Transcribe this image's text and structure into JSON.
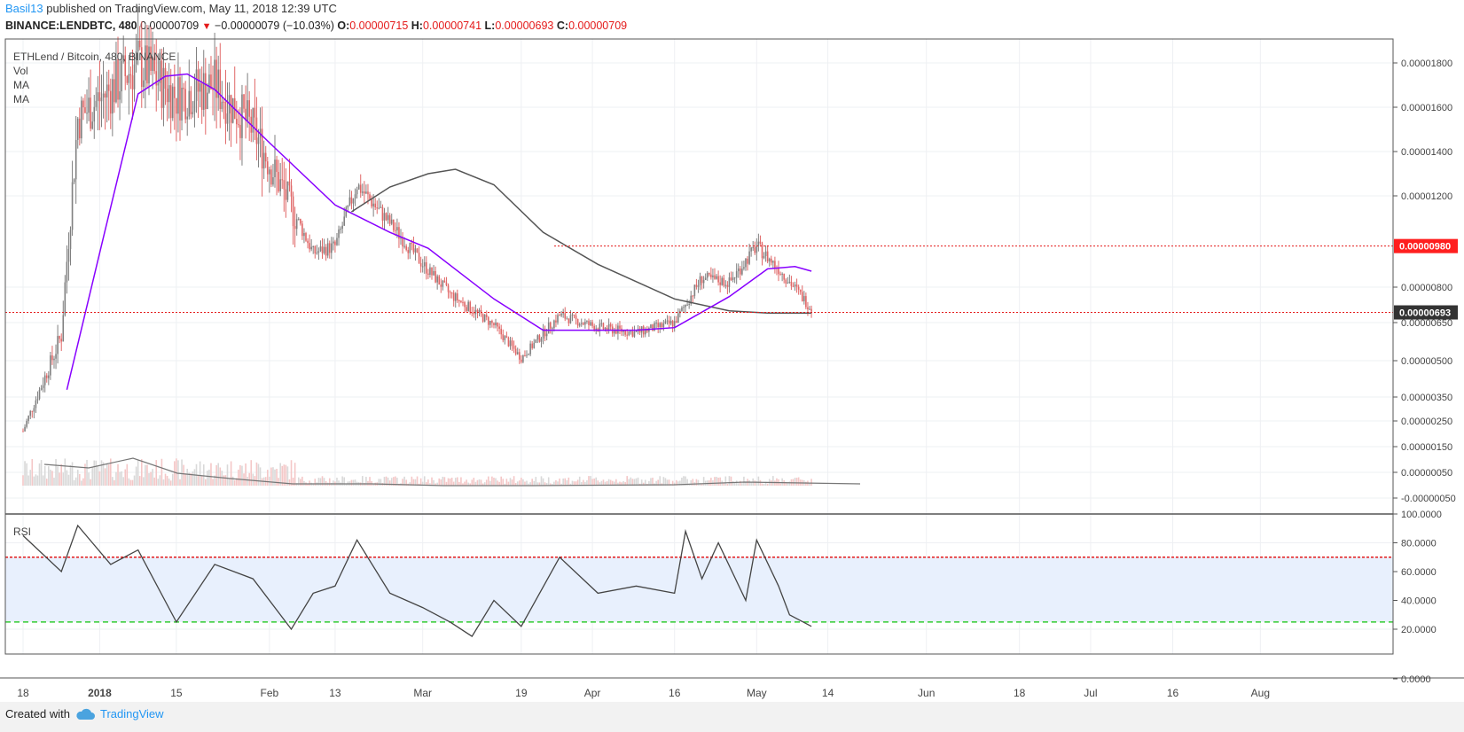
{
  "header": {
    "user": "Basil13",
    "published_text": " published on TradingView.com, May 11, 2018 12:39 UTC",
    "symbol": "BINANCE:LENDBTC, 480",
    "last": "0.00000709",
    "change": "−0.00000079 (−10.03%)",
    "o_label": "O:",
    "o": "0.00000715",
    "h_label": "H:",
    "h": "0.00000741",
    "l_label": "L:",
    "l": "0.00000693",
    "c_label": "C:",
    "c": "0.00000709"
  },
  "legend": {
    "title": "ETHLend / Bitcoin, 480, BINANCE",
    "vol": "Vol",
    "ma1": "MA",
    "ma2": "MA",
    "rsi": "RSI"
  },
  "footer": {
    "created": "Created with",
    "brand": "TradingView"
  },
  "colors": {
    "up": "#808080",
    "down": "#e06666",
    "ma_fast": "#8800ff",
    "ma_slow": "#555555",
    "rsi_line": "#444444",
    "rsi_upper": "#e41a1a",
    "rsi_lower": "#33cc33",
    "rsi_band": "#e8f0fd",
    "price_line_red": "#e41a1a"
  },
  "chart_data": {
    "type": "candlestick",
    "x_tick_labels": [
      "18",
      "2018",
      "15",
      "Feb",
      "13",
      "Mar",
      "19",
      "Apr",
      "16",
      "May",
      "14",
      "Jun",
      "18",
      "Jul",
      "16",
      "Aug"
    ],
    "price_axis_labels": [
      "0.00001800",
      "0.00001600",
      "0.00001400",
      "0.00001200",
      "0.00000800",
      "0.00000650",
      "0.00000500",
      "0.00000350",
      "0.00000250",
      "0.00000150",
      "0.00000050",
      "-0.00000050"
    ],
    "price_markers": [
      {
        "label": "0.00000980",
        "style": "red"
      },
      {
        "label": "0.00000693",
        "style": "dark"
      }
    ],
    "price_lines": [
      9.8e-06,
      6.93e-06
    ],
    "key_prices": [
      {
        "date": "Dec 18",
        "price": 2.1e-06
      },
      {
        "date": "Dec 25",
        "price": 6e-06
      },
      {
        "date": "Dec 28",
        "price": 1.55e-05
      },
      {
        "date": "Jan 3",
        "price": 1.68e-05
      },
      {
        "date": "Jan 8",
        "price": 1.8e-05
      },
      {
        "date": "Jan 15",
        "price": 1.65e-05
      },
      {
        "date": "Jan 22",
        "price": 1.7e-05
      },
      {
        "date": "Jan 29",
        "price": 1.5e-05
      },
      {
        "date": "Feb 5",
        "price": 1.15e-05
      },
      {
        "date": "Feb 9",
        "price": 9.5e-06
      },
      {
        "date": "Feb 13",
        "price": 9.8e-06
      },
      {
        "date": "Feb 17",
        "price": 1.25e-05
      },
      {
        "date": "Feb 23",
        "price": 1.08e-05
      },
      {
        "date": "Mar 1",
        "price": 9e-06
      },
      {
        "date": "Mar 6",
        "price": 7.7e-06
      },
      {
        "date": "Mar 14",
        "price": 6.4e-06
      },
      {
        "date": "Mar 19",
        "price": 5.1e-06
      },
      {
        "date": "Mar 26",
        "price": 6.8e-06
      },
      {
        "date": "Apr 2",
        "price": 6.3e-06
      },
      {
        "date": "Apr 9",
        "price": 6.1e-06
      },
      {
        "date": "Apr 16",
        "price": 6.5e-06
      },
      {
        "date": "Apr 21",
        "price": 8.4e-06
      },
      {
        "date": "Apr 26",
        "price": 8.2e-06
      },
      {
        "date": "May 1",
        "price": 9.8e-06
      },
      {
        "date": "May 5",
        "price": 8.8e-06
      },
      {
        "date": "May 11",
        "price": 7.1e-06
      }
    ],
    "ma_fast": [
      {
        "date": "Dec 26",
        "price": 3.8e-06
      },
      {
        "date": "Jan 2",
        "price": 1.05e-05
      },
      {
        "date": "Jan 8",
        "price": 1.66e-05
      },
      {
        "date": "Jan 13",
        "price": 1.74e-05
      },
      {
        "date": "Jan 17",
        "price": 1.75e-05
      },
      {
        "date": "Jan 22",
        "price": 1.68e-05
      },
      {
        "date": "Feb 1",
        "price": 1.44e-05
      },
      {
        "date": "Feb 13",
        "price": 1.16e-05
      },
      {
        "date": "Feb 23",
        "price": 1.04e-05
      },
      {
        "date": "Mar 2",
        "price": 9.7e-06
      },
      {
        "date": "Mar 14",
        "price": 7.5e-06
      },
      {
        "date": "Mar 23",
        "price": 6.2e-06
      },
      {
        "date": "Apr 9",
        "price": 6.2e-06
      },
      {
        "date": "Apr 16",
        "price": 6.3e-06
      },
      {
        "date": "Apr 26",
        "price": 7.6e-06
      },
      {
        "date": "May 3",
        "price": 8.8e-06
      },
      {
        "date": "May 8",
        "price": 8.9e-06
      },
      {
        "date": "May 11",
        "price": 8.7e-06
      }
    ],
    "ma_slow": [
      {
        "date": "Feb 16",
        "price": 1.13e-05
      },
      {
        "date": "Feb 23",
        "price": 1.24e-05
      },
      {
        "date": "Mar 2",
        "price": 1.3e-05
      },
      {
        "date": "Mar 7",
        "price": 1.32e-05
      },
      {
        "date": "Mar 14",
        "price": 1.25e-05
      },
      {
        "date": "Mar 23",
        "price": 1.04e-05
      },
      {
        "date": "Apr 2",
        "price": 9e-06
      },
      {
        "date": "Apr 16",
        "price": 7.5e-06
      },
      {
        "date": "Apr 26",
        "price": 7e-06
      },
      {
        "date": "May 3",
        "price": 6.9e-06
      },
      {
        "date": "May 11",
        "price": 6.9e-06
      }
    ],
    "volume_ma_note": "",
    "rsi_axis_labels": [
      "100.0000",
      "80.0000",
      "60.0000",
      "40.0000",
      "20.0000",
      "0.0000"
    ],
    "rsi_levels": {
      "upper": 70,
      "lower": 25
    },
    "rsi_points": [
      {
        "date": "Dec 18",
        "value": 85
      },
      {
        "date": "Dec 25",
        "value": 60
      },
      {
        "date": "Dec 28",
        "value": 92
      },
      {
        "date": "Jan 3",
        "value": 65
      },
      {
        "date": "Jan 8",
        "value": 75
      },
      {
        "date": "Jan 15",
        "value": 25
      },
      {
        "date": "Jan 22",
        "value": 65
      },
      {
        "date": "Jan 29",
        "value": 55
      },
      {
        "date": "Feb 5",
        "value": 20
      },
      {
        "date": "Feb 9",
        "value": 45
      },
      {
        "date": "Feb 13",
        "value": 50
      },
      {
        "date": "Feb 17",
        "value": 82
      },
      {
        "date": "Feb 23",
        "value": 45
      },
      {
        "date": "Mar 1",
        "value": 35
      },
      {
        "date": "Mar 6",
        "value": 25
      },
      {
        "date": "Mar 10",
        "value": 15
      },
      {
        "date": "Mar 14",
        "value": 40
      },
      {
        "date": "Mar 19",
        "value": 22
      },
      {
        "date": "Mar 26",
        "value": 70
      },
      {
        "date": "Apr 2",
        "value": 45
      },
      {
        "date": "Apr 9",
        "value": 50
      },
      {
        "date": "Apr 16",
        "value": 45
      },
      {
        "date": "Apr 18",
        "value": 88
      },
      {
        "date": "Apr 21",
        "value": 55
      },
      {
        "date": "Apr 24",
        "value": 80
      },
      {
        "date": "Apr 29",
        "value": 40
      },
      {
        "date": "May 1",
        "value": 82
      },
      {
        "date": "May 5",
        "value": 50
      },
      {
        "date": "May 7",
        "value": 30
      },
      {
        "date": "May 11",
        "value": 22
      }
    ]
  }
}
